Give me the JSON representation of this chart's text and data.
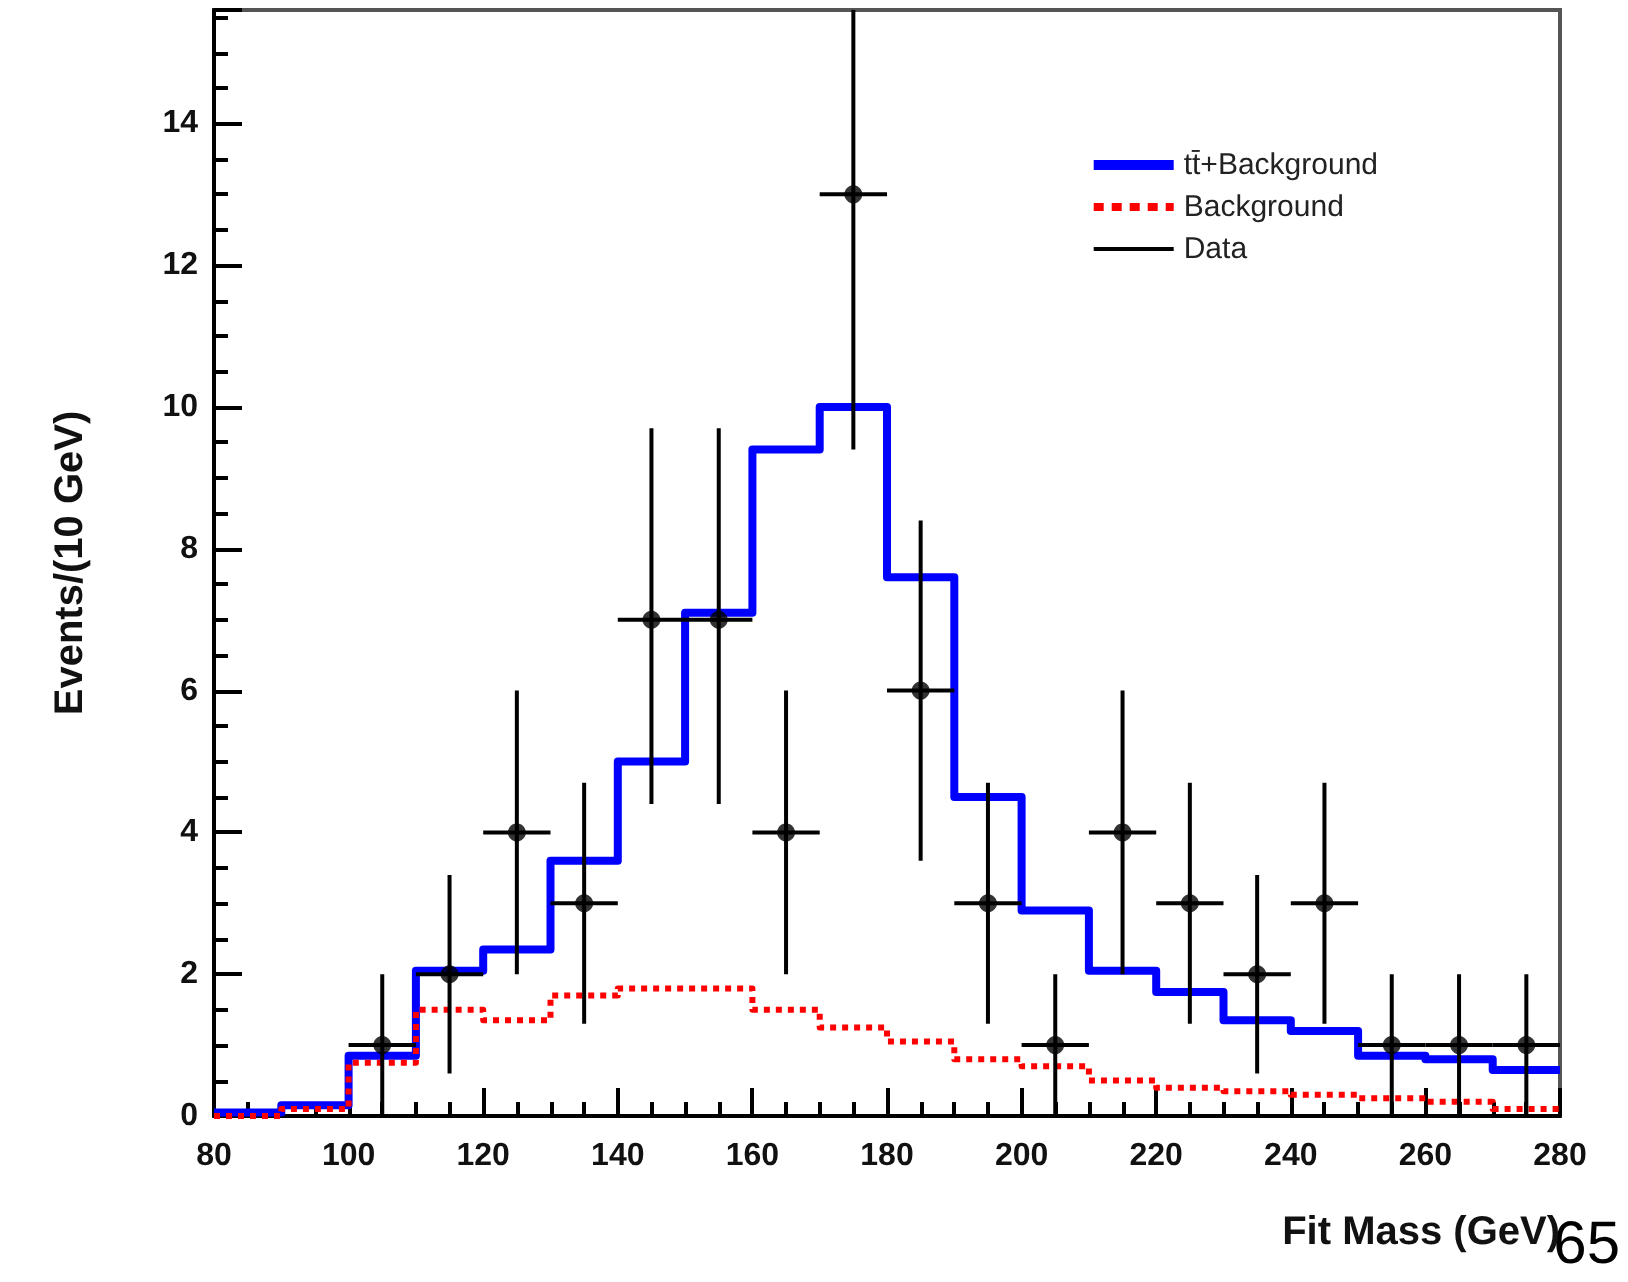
{
  "chart_data": {
    "type": "step",
    "xlabel": "Fit Mass (GeV)",
    "ylabel": "Events/(10 GeV)",
    "annotations": [
      "65"
    ],
    "xlim": [
      80,
      280
    ],
    "xticks": [
      80,
      100,
      120,
      140,
      160,
      180,
      200,
      220,
      240,
      260,
      280
    ],
    "ylim": [
      0,
      15.6
    ],
    "yticks": [
      0,
      2,
      4,
      6,
      8,
      10,
      12,
      14
    ],
    "grid": false,
    "legend": "top right",
    "series": [
      {
        "name": "tt̄+Background",
        "type": "step",
        "color": "#0000ff",
        "line_style": "solid",
        "x": [
          80,
          90,
          100,
          110,
          120,
          130,
          140,
          150,
          160,
          170,
          180,
          190,
          200,
          210,
          220,
          230,
          240,
          250,
          260,
          270,
          280
        ],
        "values": [
          0.05,
          0.15,
          0.85,
          2.05,
          2.35,
          3.6,
          5.0,
          7.1,
          9.4,
          10.0,
          7.6,
          4.5,
          2.9,
          2.05,
          1.75,
          1.35,
          1.2,
          0.85,
          0.8,
          0.65,
          0.65
        ]
      },
      {
        "name": "Background",
        "type": "step",
        "color": "#ff0000",
        "line_style": "dotted",
        "x": [
          80,
          90,
          100,
          110,
          120,
          130,
          140,
          150,
          160,
          170,
          180,
          190,
          200,
          210,
          220,
          230,
          240,
          250,
          260,
          270,
          280
        ],
        "values": [
          0.0,
          0.1,
          0.75,
          1.5,
          1.35,
          1.7,
          1.8,
          1.8,
          1.5,
          1.25,
          1.05,
          0.8,
          0.7,
          0.5,
          0.4,
          0.35,
          0.3,
          0.25,
          0.2,
          0.1,
          0.1
        ]
      },
      {
        "name": "Data",
        "type": "scatter",
        "color": "#000000",
        "marker": "circle",
        "x": [
          105,
          115,
          125,
          135,
          145,
          155,
          165,
          175,
          185,
          195,
          205,
          215,
          225,
          235,
          245,
          255,
          265,
          275
        ],
        "values": [
          1,
          2,
          4,
          3,
          7,
          7,
          4,
          13,
          6,
          3,
          1,
          4,
          3,
          2,
          3,
          1,
          1,
          1
        ],
        "errors": [
          [
            0,
            2
          ],
          [
            0.6,
            3.4
          ],
          [
            2,
            6
          ],
          [
            1.3,
            4.7
          ],
          [
            4.4,
            9.7
          ],
          [
            4.4,
            9.7
          ],
          [
            2,
            6
          ],
          [
            9.4,
            15.6
          ],
          [
            3.6,
            8.4
          ],
          [
            1.3,
            4.7
          ],
          [
            0,
            2
          ],
          [
            2,
            6
          ],
          [
            1.3,
            4.7
          ],
          [
            0.6,
            3.4
          ],
          [
            1.3,
            4.7
          ],
          [
            0,
            2
          ],
          [
            0,
            2
          ],
          [
            0,
            2
          ]
        ],
        "xerrors": [
          5,
          5,
          5,
          5,
          5,
          5,
          5,
          5,
          5,
          5,
          5,
          5,
          5,
          5,
          5,
          5,
          5,
          5
        ]
      }
    ]
  }
}
